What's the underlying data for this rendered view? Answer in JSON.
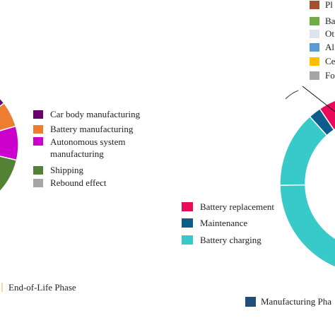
{
  "chart_data": [
    {
      "type": "pie",
      "hole": "donut",
      "segments": [
        {
          "label": "Car body manufacturing",
          "color": "#6a006f"
        },
        {
          "label": "Battery manufacturing",
          "color": "#ed7d31"
        },
        {
          "label": "Autonomous system manufacturing",
          "color": "#cc00cc"
        },
        {
          "label": "Shipping",
          "color": "#548235"
        },
        {
          "label": "Rebound effect",
          "color": "#a6a6a6"
        }
      ],
      "other_labels": [
        "End-of-Life Phase"
      ]
    },
    {
      "type": "pie",
      "hole": "donut",
      "segments": [
        {
          "label": "Battery replacement",
          "color": "#ea0a5a"
        },
        {
          "label": "Maintenance",
          "color": "#0d5d8c"
        },
        {
          "label": "Battery charging",
          "color": "#38c9c9"
        }
      ],
      "other_labels": [
        "Manufacturing Pha"
      ],
      "other_colors": [
        "#1f4e79"
      ]
    },
    {
      "type": "legend",
      "entries": [
        {
          "label": "Pl",
          "color": "#a0522d"
        },
        {
          "label": "Ba",
          "color": "#70ad47"
        },
        {
          "label": "Ot",
          "color": "#dde3ee"
        },
        {
          "label": "Al",
          "color": "#5b9bd5"
        },
        {
          "label": "Ce",
          "color": "#ffc000"
        },
        {
          "label": "Fo",
          "color": "#a6a6a6"
        }
      ]
    }
  ]
}
